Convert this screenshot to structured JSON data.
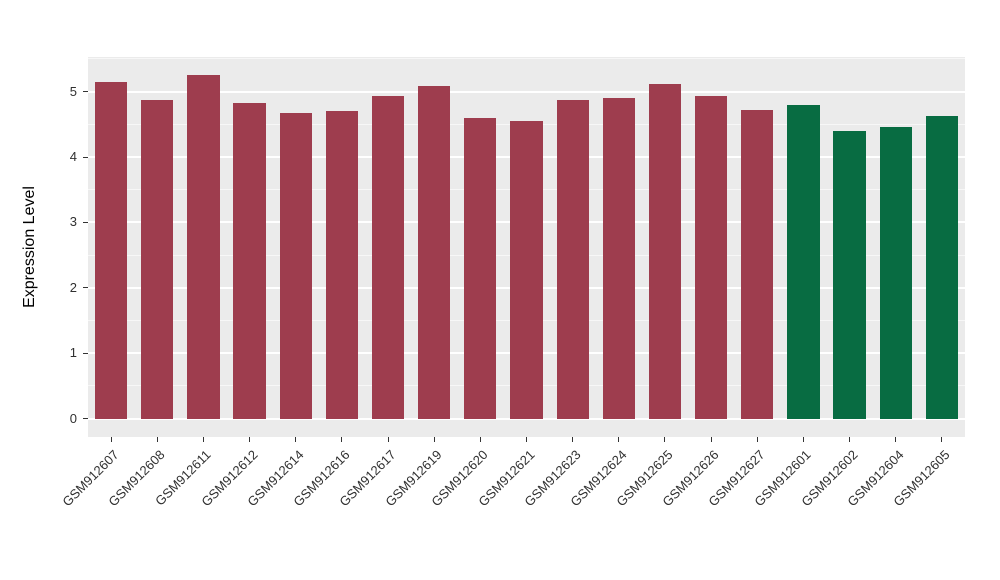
{
  "chart_data": {
    "type": "bar",
    "title": "",
    "ylabel": "Expression Level",
    "xlabel": "",
    "categories": [
      "GSM912607",
      "GSM912608",
      "GSM912611",
      "GSM912612",
      "GSM912614",
      "GSM912616",
      "GSM912617",
      "GSM912619",
      "GSM912620",
      "GSM912621",
      "GSM912623",
      "GSM912624",
      "GSM912625",
      "GSM912626",
      "GSM912627",
      "GSM912601",
      "GSM912602",
      "GSM912604",
      "GSM912605"
    ],
    "values": [
      5.15,
      4.88,
      5.25,
      4.82,
      4.68,
      4.7,
      4.93,
      5.08,
      4.6,
      4.55,
      4.88,
      4.9,
      5.12,
      4.93,
      4.72,
      4.8,
      4.4,
      4.46,
      4.63
    ],
    "groups": [
      "g1",
      "g1",
      "g1",
      "g1",
      "g1",
      "g1",
      "g1",
      "g1",
      "g1",
      "g1",
      "g1",
      "g1",
      "g1",
      "g1",
      "g1",
      "g2",
      "g2",
      "g2",
      "g2"
    ],
    "group_colors": {
      "g1": "#9e3d4e",
      "g2": "#086c42"
    },
    "ylim": [
      0,
      5.25
    ],
    "ylim_display": [
      -0.28,
      5.53
    ],
    "yticks": [
      0,
      1,
      2,
      3,
      4,
      5
    ],
    "yticks_minor": [
      0.5,
      1.5,
      2.5,
      3.5,
      4.5,
      5.5
    ],
    "grid": true,
    "legend": "none",
    "panel_bg": "#ebebeb",
    "grid_color": "#ffffff",
    "tick_color": "#333333",
    "label_color": "#303030"
  }
}
